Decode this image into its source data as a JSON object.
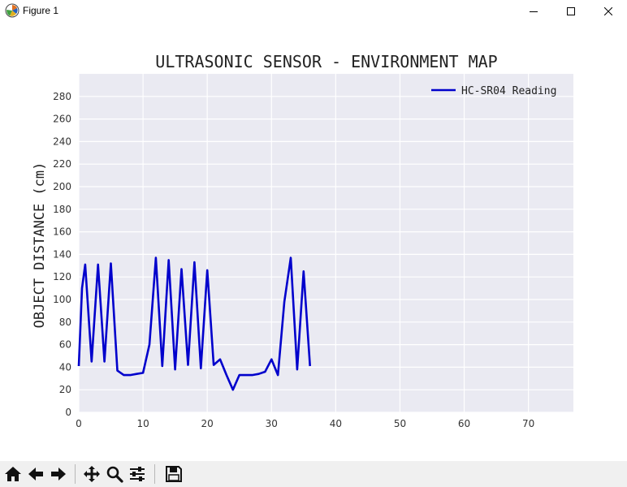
{
  "window": {
    "title": "Figure 1"
  },
  "chart_data": {
    "type": "line",
    "title": "ULTRASONIC SENSOR - ENVIRONMENT MAP",
    "xlabel": "",
    "ylabel": "OBJECT DISTANCE (cm)",
    "xlim": [
      0,
      77
    ],
    "ylim": [
      0,
      300
    ],
    "xticks": [
      0,
      10,
      20,
      30,
      40,
      50,
      60,
      70
    ],
    "yticks": [
      0,
      20,
      40,
      60,
      80,
      100,
      120,
      140,
      160,
      180,
      200,
      220,
      240,
      260,
      280
    ],
    "grid": true,
    "legend": "top-right",
    "series": [
      {
        "name": "HC-SR04 Reading",
        "color": "#0000cc",
        "x": [
          0,
          0.5,
          1,
          2,
          3,
          4,
          5,
          6,
          7,
          8,
          9,
          10,
          11,
          12,
          13,
          14,
          15,
          16,
          17,
          18,
          19,
          20,
          21,
          22,
          23,
          24,
          25,
          26,
          27,
          28,
          29,
          30,
          31,
          32,
          33,
          34,
          35,
          36
        ],
        "y": [
          41,
          110,
          131,
          45,
          131,
          45,
          132,
          37,
          33,
          33,
          34,
          35,
          60,
          137,
          41,
          135,
          38,
          127,
          42,
          133,
          39,
          126,
          42,
          47,
          33,
          20,
          33,
          33,
          33,
          34,
          36,
          47,
          33,
          98,
          137,
          38,
          125,
          41
        ]
      }
    ]
  },
  "toolbar": {
    "buttons": [
      {
        "name": "home-button",
        "icon": "home-icon"
      },
      {
        "name": "back-button",
        "icon": "arrow-left-icon"
      },
      {
        "name": "forward-button",
        "icon": "arrow-right-icon"
      },
      {
        "name": "pan-button",
        "icon": "move-icon"
      },
      {
        "name": "zoom-button",
        "icon": "magnifier-icon"
      },
      {
        "name": "subplots-button",
        "icon": "sliders-icon"
      },
      {
        "name": "save-button",
        "icon": "floppy-disk-icon"
      }
    ]
  }
}
